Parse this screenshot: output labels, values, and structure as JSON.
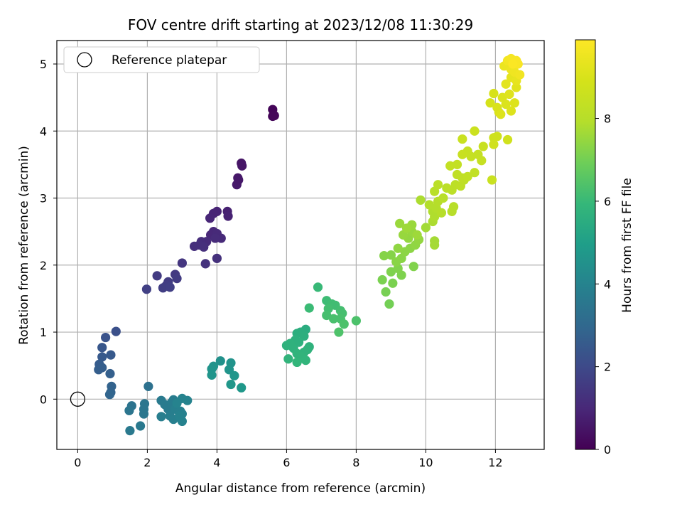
{
  "chart_data": {
    "type": "scatter",
    "title": "FOV centre drift starting at 2023/12/08 11:30:29",
    "xlabel": "Angular distance from reference (arcmin)",
    "ylabel": "Rotation from reference (arcmin)",
    "xlim": [
      -0.6,
      13.4
    ],
    "ylim": [
      -0.75,
      5.35
    ],
    "xticks": [
      0,
      2,
      4,
      6,
      8,
      10,
      12
    ],
    "yticks": [
      0,
      1,
      2,
      3,
      4,
      5
    ],
    "grid": true,
    "legend": {
      "placement": "top-left",
      "entries": [
        "Reference platepar"
      ]
    },
    "reference_point": {
      "x": 0,
      "y": 0,
      "label": "Reference platepar"
    },
    "colorbar": {
      "label": "Hours from first FF file",
      "range": [
        0,
        9.9
      ],
      "ticks": [
        0,
        2,
        4,
        6,
        8
      ],
      "colormap": "viridis"
    },
    "points": [
      {
        "x": 5.6,
        "y": 4.32,
        "t": 0.1
      },
      {
        "x": 5.6,
        "y": 4.22,
        "t": 0.1
      },
      {
        "x": 5.65,
        "y": 4.23,
        "t": 0.15
      },
      {
        "x": 4.7,
        "y": 3.52,
        "t": 0.5
      },
      {
        "x": 4.72,
        "y": 3.48,
        "t": 0.5
      },
      {
        "x": 4.6,
        "y": 3.3,
        "t": 0.55
      },
      {
        "x": 4.57,
        "y": 3.2,
        "t": 0.6
      },
      {
        "x": 4.62,
        "y": 3.27,
        "t": 0.58
      },
      {
        "x": 4.3,
        "y": 2.8,
        "t": 0.8
      },
      {
        "x": 4.32,
        "y": 2.73,
        "t": 0.85
      },
      {
        "x": 4.0,
        "y": 2.8,
        "t": 0.9
      },
      {
        "x": 3.9,
        "y": 2.77,
        "t": 0.92
      },
      {
        "x": 3.8,
        "y": 2.7,
        "t": 0.95
      },
      {
        "x": 3.9,
        "y": 2.5,
        "t": 1.0
      },
      {
        "x": 3.82,
        "y": 2.45,
        "t": 1.0
      },
      {
        "x": 4.0,
        "y": 2.47,
        "t": 1.05
      },
      {
        "x": 4.12,
        "y": 2.4,
        "t": 1.05
      },
      {
        "x": 3.95,
        "y": 2.4,
        "t": 1.1
      },
      {
        "x": 3.7,
        "y": 2.35,
        "t": 1.12
      },
      {
        "x": 3.55,
        "y": 2.35,
        "t": 1.15
      },
      {
        "x": 3.5,
        "y": 2.3,
        "t": 1.2
      },
      {
        "x": 3.35,
        "y": 2.28,
        "t": 1.2
      },
      {
        "x": 3.62,
        "y": 2.27,
        "t": 1.22
      },
      {
        "x": 4.0,
        "y": 2.1,
        "t": 1.25
      },
      {
        "x": 3.67,
        "y": 2.02,
        "t": 1.3
      },
      {
        "x": 3.0,
        "y": 2.03,
        "t": 1.4
      },
      {
        "x": 2.8,
        "y": 1.86,
        "t": 1.5
      },
      {
        "x": 2.28,
        "y": 1.84,
        "t": 1.55
      },
      {
        "x": 2.85,
        "y": 1.8,
        "t": 1.55
      },
      {
        "x": 2.6,
        "y": 1.75,
        "t": 1.6
      },
      {
        "x": 2.55,
        "y": 1.7,
        "t": 1.62
      },
      {
        "x": 2.45,
        "y": 1.66,
        "t": 1.65
      },
      {
        "x": 2.65,
        "y": 1.67,
        "t": 1.68
      },
      {
        "x": 1.98,
        "y": 1.64,
        "t": 1.7
      },
      {
        "x": 1.1,
        "y": 1.01,
        "t": 2.2
      },
      {
        "x": 0.8,
        "y": 0.92,
        "t": 2.3
      },
      {
        "x": 0.7,
        "y": 0.77,
        "t": 2.4
      },
      {
        "x": 0.95,
        "y": 0.66,
        "t": 2.5
      },
      {
        "x": 0.7,
        "y": 0.63,
        "t": 2.5
      },
      {
        "x": 0.62,
        "y": 0.52,
        "t": 2.6
      },
      {
        "x": 0.6,
        "y": 0.44,
        "t": 2.65
      },
      {
        "x": 0.7,
        "y": 0.47,
        "t": 2.65
      },
      {
        "x": 0.93,
        "y": 0.38,
        "t": 2.7
      },
      {
        "x": 0.97,
        "y": 0.19,
        "t": 2.8
      },
      {
        "x": 0.95,
        "y": 0.1,
        "t": 2.85
      },
      {
        "x": 0.92,
        "y": 0.07,
        "t": 2.9
      },
      {
        "x": 2.03,
        "y": 0.19,
        "t": 3.3
      },
      {
        "x": 1.55,
        "y": -0.1,
        "t": 3.4
      },
      {
        "x": 1.48,
        "y": -0.17,
        "t": 3.45
      },
      {
        "x": 1.92,
        "y": -0.07,
        "t": 3.5
      },
      {
        "x": 1.9,
        "y": -0.15,
        "t": 3.5
      },
      {
        "x": 1.9,
        "y": -0.22,
        "t": 3.55
      },
      {
        "x": 1.5,
        "y": -0.47,
        "t": 3.6
      },
      {
        "x": 1.8,
        "y": -0.4,
        "t": 3.6
      },
      {
        "x": 2.4,
        "y": -0.02,
        "t": 3.65
      },
      {
        "x": 2.5,
        "y": -0.08,
        "t": 3.7
      },
      {
        "x": 2.6,
        "y": -0.15,
        "t": 3.7
      },
      {
        "x": 2.7,
        "y": -0.05,
        "t": 3.75
      },
      {
        "x": 2.75,
        "y": -0.01,
        "t": 3.75
      },
      {
        "x": 2.65,
        "y": -0.25,
        "t": 3.8
      },
      {
        "x": 2.4,
        "y": -0.26,
        "t": 3.8
      },
      {
        "x": 2.75,
        "y": -0.3,
        "t": 3.85
      },
      {
        "x": 2.8,
        "y": -0.15,
        "t": 3.85
      },
      {
        "x": 2.95,
        "y": -0.18,
        "t": 3.9
      },
      {
        "x": 3.0,
        "y": -0.22,
        "t": 3.9
      },
      {
        "x": 3.0,
        "y": -0.33,
        "t": 3.95
      },
      {
        "x": 2.92,
        "y": -0.25,
        "t": 3.95
      },
      {
        "x": 3.0,
        "y": 0.01,
        "t": 4.0
      },
      {
        "x": 3.15,
        "y": -0.02,
        "t": 4.0
      },
      {
        "x": 2.85,
        "y": -0.06,
        "t": 4.0
      },
      {
        "x": 4.1,
        "y": 0.57,
        "t": 4.5
      },
      {
        "x": 4.4,
        "y": 0.54,
        "t": 4.55
      },
      {
        "x": 3.9,
        "y": 0.49,
        "t": 4.55
      },
      {
        "x": 3.85,
        "y": 0.45,
        "t": 4.6
      },
      {
        "x": 4.35,
        "y": 0.44,
        "t": 4.6
      },
      {
        "x": 3.85,
        "y": 0.36,
        "t": 4.62
      },
      {
        "x": 4.5,
        "y": 0.35,
        "t": 4.65
      },
      {
        "x": 4.4,
        "y": 0.22,
        "t": 4.7
      },
      {
        "x": 4.7,
        "y": 0.17,
        "t": 4.75
      },
      {
        "x": 6.55,
        "y": 1.04,
        "t": 5.5
      },
      {
        "x": 6.4,
        "y": 1.0,
        "t": 5.55
      },
      {
        "x": 6.3,
        "y": 0.98,
        "t": 5.6
      },
      {
        "x": 6.5,
        "y": 0.94,
        "t": 5.6
      },
      {
        "x": 6.25,
        "y": 0.88,
        "t": 5.65
      },
      {
        "x": 6.35,
        "y": 0.85,
        "t": 5.65
      },
      {
        "x": 6.1,
        "y": 0.83,
        "t": 5.7
      },
      {
        "x": 6.0,
        "y": 0.8,
        "t": 5.7
      },
      {
        "x": 6.65,
        "y": 0.78,
        "t": 5.7
      },
      {
        "x": 6.2,
        "y": 0.76,
        "t": 5.72
      },
      {
        "x": 6.6,
        "y": 0.74,
        "t": 5.75
      },
      {
        "x": 6.5,
        "y": 0.7,
        "t": 5.75
      },
      {
        "x": 6.3,
        "y": 0.68,
        "t": 5.78
      },
      {
        "x": 6.4,
        "y": 0.64,
        "t": 5.8
      },
      {
        "x": 6.05,
        "y": 0.6,
        "t": 5.8
      },
      {
        "x": 6.55,
        "y": 0.58,
        "t": 5.82
      },
      {
        "x": 6.3,
        "y": 0.55,
        "t": 5.85
      },
      {
        "x": 6.9,
        "y": 1.67,
        "t": 6.0
      },
      {
        "x": 6.65,
        "y": 1.36,
        "t": 6.05
      },
      {
        "x": 7.15,
        "y": 1.47,
        "t": 6.1
      },
      {
        "x": 7.3,
        "y": 1.42,
        "t": 6.15
      },
      {
        "x": 7.4,
        "y": 1.4,
        "t": 6.15
      },
      {
        "x": 7.2,
        "y": 1.35,
        "t": 6.2
      },
      {
        "x": 7.55,
        "y": 1.32,
        "t": 6.2
      },
      {
        "x": 7.6,
        "y": 1.28,
        "t": 6.25
      },
      {
        "x": 7.15,
        "y": 1.25,
        "t": 6.25
      },
      {
        "x": 7.55,
        "y": 1.2,
        "t": 6.3
      },
      {
        "x": 7.35,
        "y": 1.2,
        "t": 6.3
      },
      {
        "x": 7.65,
        "y": 1.12,
        "t": 6.35
      },
      {
        "x": 8.0,
        "y": 1.17,
        "t": 6.35
      },
      {
        "x": 7.5,
        "y": 1.0,
        "t": 6.4
      },
      {
        "x": 8.95,
        "y": 1.42,
        "t": 7.0
      },
      {
        "x": 8.85,
        "y": 1.6,
        "t": 7.05
      },
      {
        "x": 8.75,
        "y": 1.78,
        "t": 7.1
      },
      {
        "x": 9.05,
        "y": 1.73,
        "t": 7.1
      },
      {
        "x": 9.3,
        "y": 1.85,
        "t": 7.15
      },
      {
        "x": 9.0,
        "y": 1.9,
        "t": 7.15
      },
      {
        "x": 9.2,
        "y": 1.95,
        "t": 7.2
      },
      {
        "x": 9.65,
        "y": 1.98,
        "t": 7.2
      },
      {
        "x": 8.8,
        "y": 2.14,
        "t": 7.25
      },
      {
        "x": 9.0,
        "y": 2.15,
        "t": 7.25
      },
      {
        "x": 9.3,
        "y": 2.1,
        "t": 7.3
      },
      {
        "x": 9.15,
        "y": 2.05,
        "t": 7.3
      },
      {
        "x": 9.4,
        "y": 2.2,
        "t": 7.35
      },
      {
        "x": 9.55,
        "y": 2.25,
        "t": 7.35
      },
      {
        "x": 9.2,
        "y": 2.25,
        "t": 7.4
      },
      {
        "x": 9.7,
        "y": 2.3,
        "t": 7.4
      },
      {
        "x": 9.8,
        "y": 2.38,
        "t": 7.45
      },
      {
        "x": 9.5,
        "y": 2.4,
        "t": 7.45
      },
      {
        "x": 9.35,
        "y": 2.45,
        "t": 7.5
      },
      {
        "x": 9.6,
        "y": 2.5,
        "t": 7.5
      },
      {
        "x": 9.25,
        "y": 2.62,
        "t": 7.55
      },
      {
        "x": 9.6,
        "y": 2.6,
        "t": 7.55
      },
      {
        "x": 9.45,
        "y": 2.55,
        "t": 7.6
      },
      {
        "x": 9.75,
        "y": 2.45,
        "t": 7.6
      },
      {
        "x": 10.0,
        "y": 2.56,
        "t": 7.65
      },
      {
        "x": 10.25,
        "y": 2.3,
        "t": 7.7
      },
      {
        "x": 10.25,
        "y": 2.36,
        "t": 7.7
      },
      {
        "x": 9.85,
        "y": 2.97,
        "t": 7.8
      },
      {
        "x": 10.2,
        "y": 2.65,
        "t": 7.8
      },
      {
        "x": 10.25,
        "y": 2.72,
        "t": 7.85
      },
      {
        "x": 10.2,
        "y": 2.8,
        "t": 7.85
      },
      {
        "x": 10.1,
        "y": 2.9,
        "t": 7.9
      },
      {
        "x": 10.3,
        "y": 2.85,
        "t": 7.9
      },
      {
        "x": 10.45,
        "y": 2.78,
        "t": 7.95
      },
      {
        "x": 10.35,
        "y": 2.95,
        "t": 7.95
      },
      {
        "x": 10.75,
        "y": 2.8,
        "t": 8.0
      },
      {
        "x": 10.8,
        "y": 2.87,
        "t": 8.0
      },
      {
        "x": 10.5,
        "y": 3.0,
        "t": 8.05
      },
      {
        "x": 10.25,
        "y": 3.1,
        "t": 8.05
      },
      {
        "x": 10.35,
        "y": 3.2,
        "t": 8.1
      },
      {
        "x": 10.6,
        "y": 3.15,
        "t": 8.1
      },
      {
        "x": 10.75,
        "y": 3.12,
        "t": 8.15
      },
      {
        "x": 10.85,
        "y": 3.2,
        "t": 8.15
      },
      {
        "x": 11.0,
        "y": 3.18,
        "t": 8.2
      },
      {
        "x": 11.1,
        "y": 3.27,
        "t": 8.2
      },
      {
        "x": 10.9,
        "y": 3.35,
        "t": 8.25
      },
      {
        "x": 11.05,
        "y": 3.3,
        "t": 8.25
      },
      {
        "x": 11.2,
        "y": 3.32,
        "t": 8.3
      },
      {
        "x": 11.4,
        "y": 3.38,
        "t": 8.3
      },
      {
        "x": 10.7,
        "y": 3.48,
        "t": 8.35
      },
      {
        "x": 10.9,
        "y": 3.5,
        "t": 8.35
      },
      {
        "x": 11.3,
        "y": 3.62,
        "t": 8.4
      },
      {
        "x": 11.5,
        "y": 3.65,
        "t": 8.4
      },
      {
        "x": 11.6,
        "y": 3.56,
        "t": 8.45
      },
      {
        "x": 11.2,
        "y": 3.7,
        "t": 8.45
      },
      {
        "x": 11.05,
        "y": 3.65,
        "t": 8.5
      },
      {
        "x": 11.65,
        "y": 3.77,
        "t": 8.5
      },
      {
        "x": 11.9,
        "y": 3.27,
        "t": 8.55
      },
      {
        "x": 11.05,
        "y": 3.88,
        "t": 8.55
      },
      {
        "x": 11.4,
        "y": 4.0,
        "t": 8.6
      },
      {
        "x": 11.95,
        "y": 3.9,
        "t": 8.65
      },
      {
        "x": 12.05,
        "y": 3.92,
        "t": 8.7
      },
      {
        "x": 12.35,
        "y": 3.87,
        "t": 8.75
      },
      {
        "x": 11.95,
        "y": 3.8,
        "t": 8.75
      },
      {
        "x": 11.85,
        "y": 4.42,
        "t": 8.9
      },
      {
        "x": 11.95,
        "y": 4.56,
        "t": 8.95
      },
      {
        "x": 12.05,
        "y": 4.35,
        "t": 9.0
      },
      {
        "x": 12.1,
        "y": 4.28,
        "t": 9.0
      },
      {
        "x": 12.2,
        "y": 4.5,
        "t": 9.05
      },
      {
        "x": 12.3,
        "y": 4.4,
        "t": 9.05
      },
      {
        "x": 12.45,
        "y": 4.3,
        "t": 9.1
      },
      {
        "x": 12.55,
        "y": 4.42,
        "t": 9.1
      },
      {
        "x": 12.15,
        "y": 4.25,
        "t": 9.1
      },
      {
        "x": 12.4,
        "y": 4.55,
        "t": 9.15
      },
      {
        "x": 12.6,
        "y": 4.65,
        "t": 9.2
      },
      {
        "x": 12.3,
        "y": 4.7,
        "t": 9.25
      },
      {
        "x": 12.45,
        "y": 4.8,
        "t": 9.3
      },
      {
        "x": 12.6,
        "y": 4.75,
        "t": 9.35
      },
      {
        "x": 12.25,
        "y": 4.97,
        "t": 9.45
      },
      {
        "x": 12.45,
        "y": 4.92,
        "t": 9.5
      },
      {
        "x": 12.55,
        "y": 4.88,
        "t": 9.55
      },
      {
        "x": 12.7,
        "y": 4.84,
        "t": 9.6
      },
      {
        "x": 12.35,
        "y": 5.05,
        "t": 9.65
      },
      {
        "x": 12.45,
        "y": 5.08,
        "t": 9.7
      },
      {
        "x": 12.6,
        "y": 5.05,
        "t": 9.75
      },
      {
        "x": 12.65,
        "y": 5.0,
        "t": 9.8
      },
      {
        "x": 12.5,
        "y": 5.0,
        "t": 9.85
      }
    ]
  }
}
